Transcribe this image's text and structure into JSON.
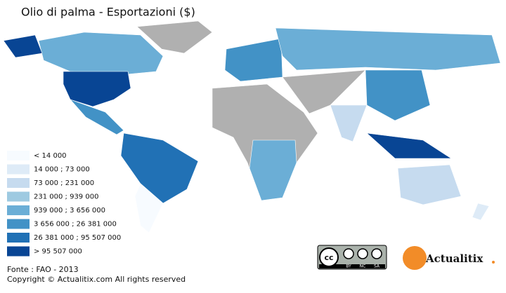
{
  "title": "Olio di palma - Esportazioni ($)",
  "legend": {
    "items": [
      {
        "label": "< 14 000",
        "color": "#f7fbff"
      },
      {
        "label": "14 000 ; 73 000",
        "color": "#deebf7"
      },
      {
        "label": "73 000 ; 231 000",
        "color": "#c6dbef"
      },
      {
        "label": "231 000 ; 939 000",
        "color": "#9ecae1"
      },
      {
        "label": "939 000 ; 3 656 000",
        "color": "#6baed6"
      },
      {
        "label": "3 656 000 ; 26 381 000",
        "color": "#4292c6"
      },
      {
        "label": "26 381 000 ; 95 507 000",
        "color": "#2171b5"
      },
      {
        "label": "> 95 507 000",
        "color": "#084594"
      }
    ]
  },
  "source": "Fonte : FAO - 2013",
  "copyright": "Copyright © Actualitix.com All rights reserved",
  "license": {
    "cc": "cc",
    "terms": [
      "BY",
      "NC",
      "SA"
    ]
  },
  "brand": "Actualitix"
}
